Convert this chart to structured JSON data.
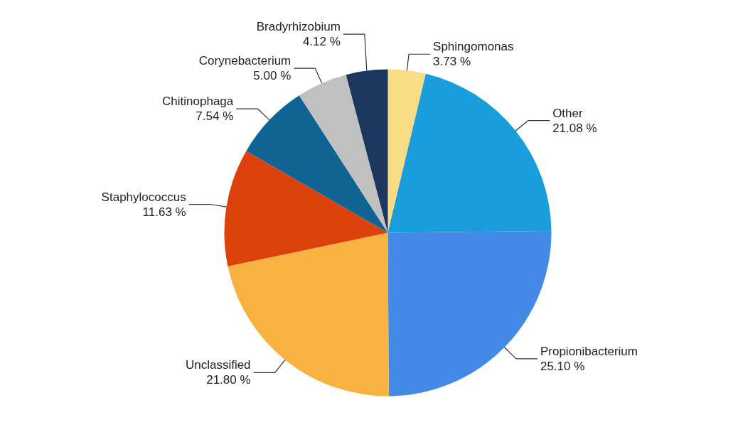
{
  "chart_data": {
    "type": "pie",
    "categories": [
      "Sphingomonas",
      "Other",
      "Propionibacterium",
      "Unclassified",
      "Staphylococcus",
      "Chitinophaga",
      "Corynebacterium",
      "Bradyrhizobium"
    ],
    "values": [
      3.73,
      21.08,
      25.1,
      21.8,
      11.63,
      7.54,
      5.0,
      4.12
    ],
    "colors": [
      "#f9dd85",
      "#1a9ddb",
      "#428ae6",
      "#f8b23f",
      "#dd410b",
      "#0f6494",
      "#c0c0c0",
      "#1b365f"
    ],
    "value_labels": [
      "3.73 %",
      "21.08 %",
      "25.10 %",
      "21.80 %",
      "11.63 %",
      "7.54 %",
      "5.00 %",
      "4.12 %"
    ]
  }
}
